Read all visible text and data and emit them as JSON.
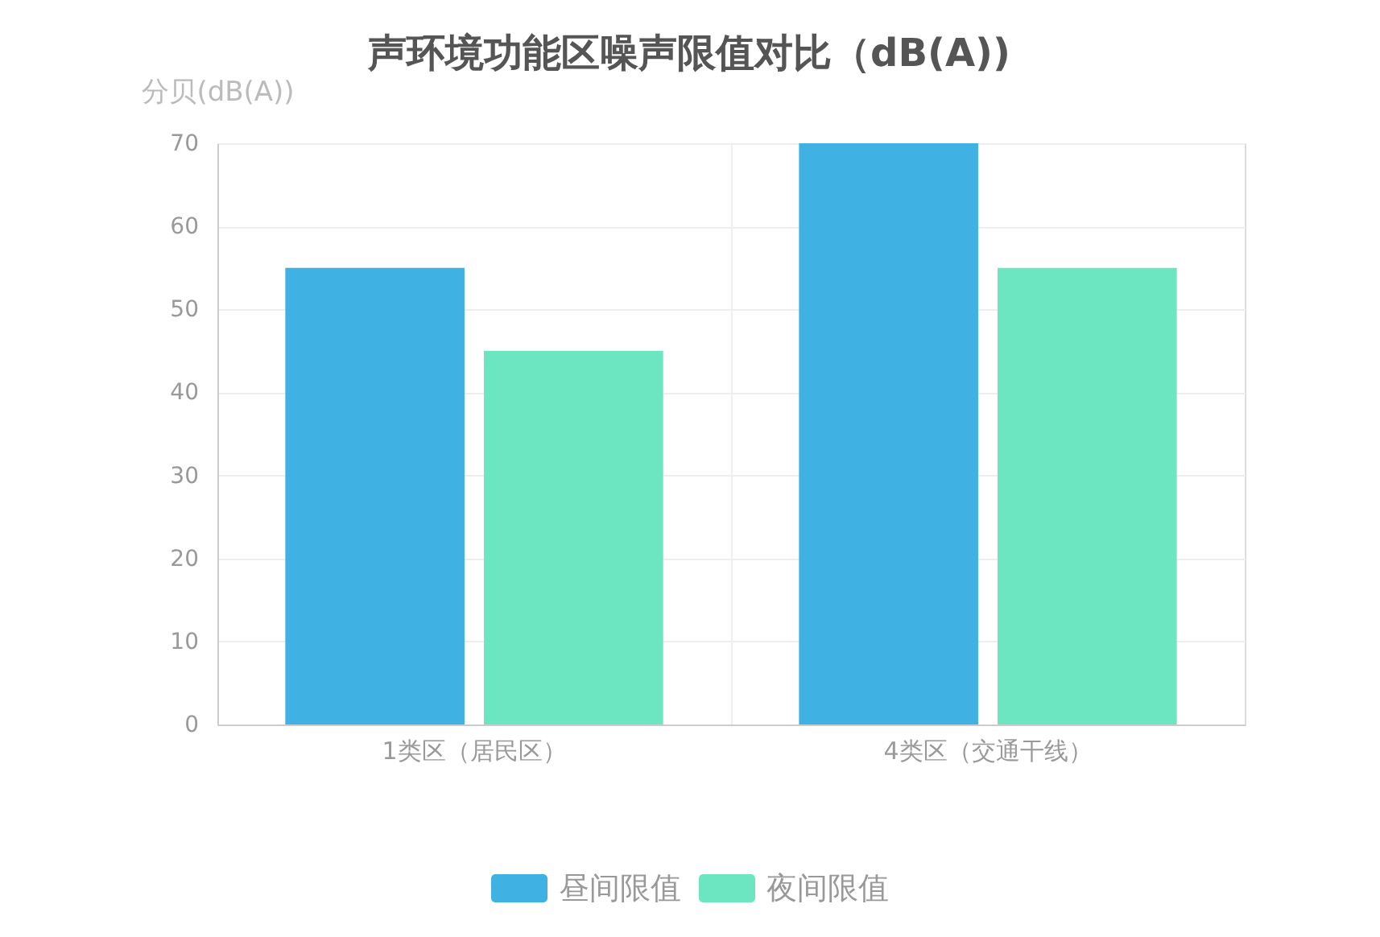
{
  "chart_data": {
    "type": "bar",
    "title": "声环境功能区噪声限值对比（dB(A))",
    "ylabel": "分贝(dB(A))",
    "categories": [
      "1类区（居民区）",
      "4类区（交通干线）"
    ],
    "series": [
      {
        "name": "昼间限值",
        "color": "#3fb1e3",
        "values": [
          55,
          70
        ]
      },
      {
        "name": "夜间限值",
        "color": "#6be6c1",
        "values": [
          45,
          55
        ]
      }
    ],
    "ylim": [
      0,
      70
    ],
    "yticks": [
      0,
      10,
      20,
      30,
      40,
      50,
      60,
      70
    ],
    "grid": true,
    "legend": "bottom"
  }
}
